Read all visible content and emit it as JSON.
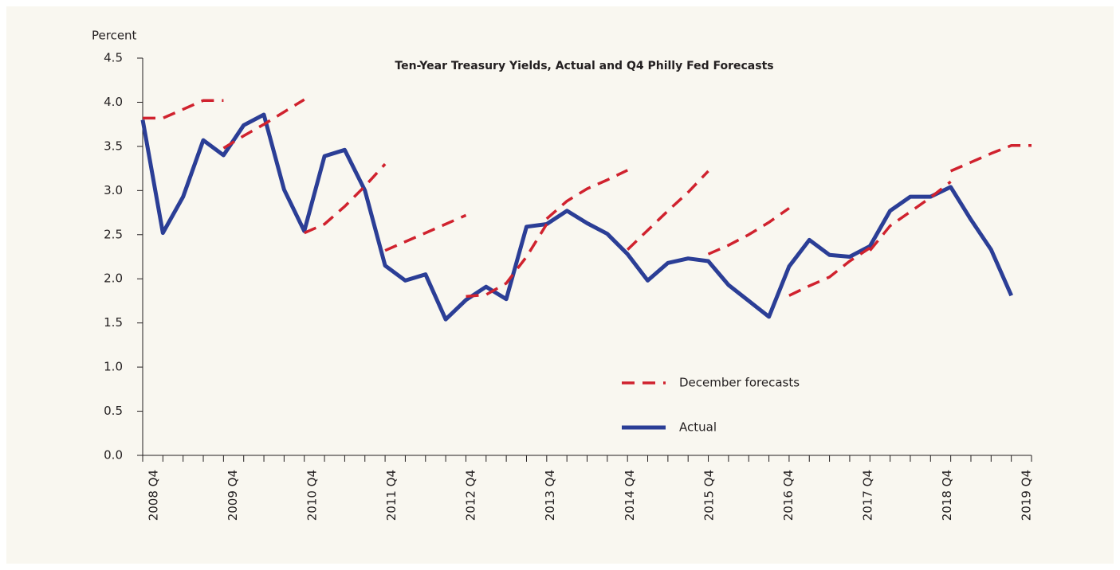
{
  "chart_data": {
    "type": "line",
    "title": "Ten-Year Treasury Yields, Actual and Q4 Philly Fed Forecasts",
    "y_label": "Percent",
    "categories": [
      "2008 Q4",
      null,
      null,
      null,
      "2009 Q4",
      null,
      null,
      null,
      "2010 Q4",
      null,
      null,
      null,
      "2011 Q4",
      null,
      null,
      null,
      "2012 Q4",
      null,
      null,
      null,
      "2013 Q4",
      null,
      null,
      null,
      "2014 Q4",
      null,
      null,
      null,
      "2015 Q4",
      null,
      null,
      null,
      "2016 Q4",
      null,
      null,
      null,
      "2017 Q4",
      null,
      null,
      null,
      "2018 Q4",
      null,
      null,
      null,
      "2019 Q4"
    ],
    "ylim": [
      0,
      4.5
    ],
    "yticks": [
      {
        "value": 0,
        "label": "0.0"
      },
      0.5,
      {
        "value": 1,
        "label": "1.0"
      },
      1.5,
      {
        "value": 2,
        "label": "2.0"
      },
      2.5,
      {
        "value": 3,
        "label": "3.0"
      },
      3.5,
      {
        "value": 4,
        "label": "4.0"
      },
      4.5
    ],
    "grid": false,
    "series": [
      {
        "name": "Actual",
        "color": "#2b3e96",
        "dashed": false,
        "values": [
          3.8,
          2.52,
          2.93,
          3.57,
          3.4,
          3.74,
          3.86,
          3.01,
          2.54,
          3.39,
          3.46,
          3.0,
          2.15,
          1.98,
          2.05,
          1.54,
          1.76,
          1.91,
          1.77,
          2.59,
          2.62,
          2.77,
          2.63,
          2.51,
          2.28,
          1.98,
          2.18,
          2.23,
          2.2,
          1.93,
          1.75,
          1.57,
          2.14,
          2.44,
          2.27,
          2.25,
          2.37,
          2.77,
          2.93,
          2.93,
          3.04,
          2.67,
          2.33,
          1.81,
          null
        ]
      },
      {
        "name": "December forecasts",
        "color": "#d0222e",
        "dashed": true,
        "values": [
          [
            3.82,
            3.82,
            3.92,
            4.02,
            4.02,
            null,
            null,
            null,
            null,
            null,
            null,
            null,
            null,
            null,
            null,
            null,
            null,
            null,
            null,
            null,
            null,
            null,
            null,
            null,
            null,
            null,
            null,
            null,
            null,
            null,
            null,
            null,
            null,
            null,
            null,
            null,
            null,
            null,
            null,
            null,
            null,
            null,
            null,
            null,
            null
          ],
          [
            null,
            null,
            null,
            null,
            3.48,
            3.62,
            3.75,
            3.89,
            4.03,
            null,
            null,
            null,
            null,
            null,
            null,
            null,
            null,
            null,
            null,
            null,
            null,
            null,
            null,
            null,
            null,
            null,
            null,
            null,
            null,
            null,
            null,
            null,
            null,
            null,
            null,
            null,
            null,
            null,
            null,
            null,
            null,
            null,
            null,
            null,
            null
          ],
          [
            null,
            null,
            null,
            null,
            null,
            null,
            null,
            null,
            2.52,
            2.62,
            2.82,
            3.05,
            3.3,
            null,
            null,
            null,
            null,
            null,
            null,
            null,
            null,
            null,
            null,
            null,
            null,
            null,
            null,
            null,
            null,
            null,
            null,
            null,
            null,
            null,
            null,
            null,
            null,
            null,
            null,
            null,
            null,
            null,
            null,
            null,
            null
          ],
          [
            null,
            null,
            null,
            null,
            null,
            null,
            null,
            null,
            null,
            null,
            null,
            null,
            2.32,
            2.42,
            2.52,
            2.62,
            2.72,
            null,
            null,
            null,
            null,
            null,
            null,
            null,
            null,
            null,
            null,
            null,
            null,
            null,
            null,
            null,
            null,
            null,
            null,
            null,
            null,
            null,
            null,
            null,
            null,
            null,
            null,
            null,
            null
          ],
          [
            null,
            null,
            null,
            null,
            null,
            null,
            null,
            null,
            null,
            null,
            null,
            null,
            null,
            null,
            null,
            null,
            1.8,
            1.82,
            1.95,
            2.25,
            2.62,
            null,
            null,
            null,
            null,
            null,
            null,
            null,
            null,
            null,
            null,
            null,
            null,
            null,
            null,
            null,
            null,
            null,
            null,
            null,
            null,
            null,
            null,
            null,
            null
          ],
          [
            null,
            null,
            null,
            null,
            null,
            null,
            null,
            null,
            null,
            null,
            null,
            null,
            null,
            null,
            null,
            null,
            null,
            null,
            null,
            null,
            2.68,
            2.88,
            3.02,
            3.12,
            3.23,
            null,
            null,
            null,
            null,
            null,
            null,
            null,
            null,
            null,
            null,
            null,
            null,
            null,
            null,
            null,
            null,
            null,
            null,
            null,
            null
          ],
          [
            null,
            null,
            null,
            null,
            null,
            null,
            null,
            null,
            null,
            null,
            null,
            null,
            null,
            null,
            null,
            null,
            null,
            null,
            null,
            null,
            null,
            null,
            null,
            null,
            2.33,
            2.55,
            2.77,
            2.98,
            3.22,
            null,
            null,
            null,
            null,
            null,
            null,
            null,
            null,
            null,
            null,
            null,
            null,
            null,
            null,
            null,
            null
          ],
          [
            null,
            null,
            null,
            null,
            null,
            null,
            null,
            null,
            null,
            null,
            null,
            null,
            null,
            null,
            null,
            null,
            null,
            null,
            null,
            null,
            null,
            null,
            null,
            null,
            null,
            null,
            null,
            null,
            2.28,
            2.38,
            2.5,
            2.64,
            2.8,
            null,
            null,
            null,
            null,
            null,
            null,
            null,
            null,
            null,
            null,
            null,
            null
          ],
          [
            null,
            null,
            null,
            null,
            null,
            null,
            null,
            null,
            null,
            null,
            null,
            null,
            null,
            null,
            null,
            null,
            null,
            null,
            null,
            null,
            null,
            null,
            null,
            null,
            null,
            null,
            null,
            null,
            null,
            null,
            null,
            null,
            1.81,
            1.92,
            2.02,
            2.2,
            2.35,
            null,
            null,
            null,
            null,
            null,
            null,
            null,
            null
          ],
          [
            null,
            null,
            null,
            null,
            null,
            null,
            null,
            null,
            null,
            null,
            null,
            null,
            null,
            null,
            null,
            null,
            null,
            null,
            null,
            null,
            null,
            null,
            null,
            null,
            null,
            null,
            null,
            null,
            null,
            null,
            null,
            null,
            null,
            null,
            null,
            null,
            2.32,
            2.6,
            2.76,
            2.92,
            3.1,
            null,
            null,
            null,
            null
          ],
          [
            null,
            null,
            null,
            null,
            null,
            null,
            null,
            null,
            null,
            null,
            null,
            null,
            null,
            null,
            null,
            null,
            null,
            null,
            null,
            null,
            null,
            null,
            null,
            null,
            null,
            null,
            null,
            null,
            null,
            null,
            null,
            null,
            null,
            null,
            null,
            null,
            null,
            null,
            null,
            null,
            3.22,
            3.32,
            3.42,
            3.51,
            3.51
          ]
        ]
      }
    ]
  }
}
